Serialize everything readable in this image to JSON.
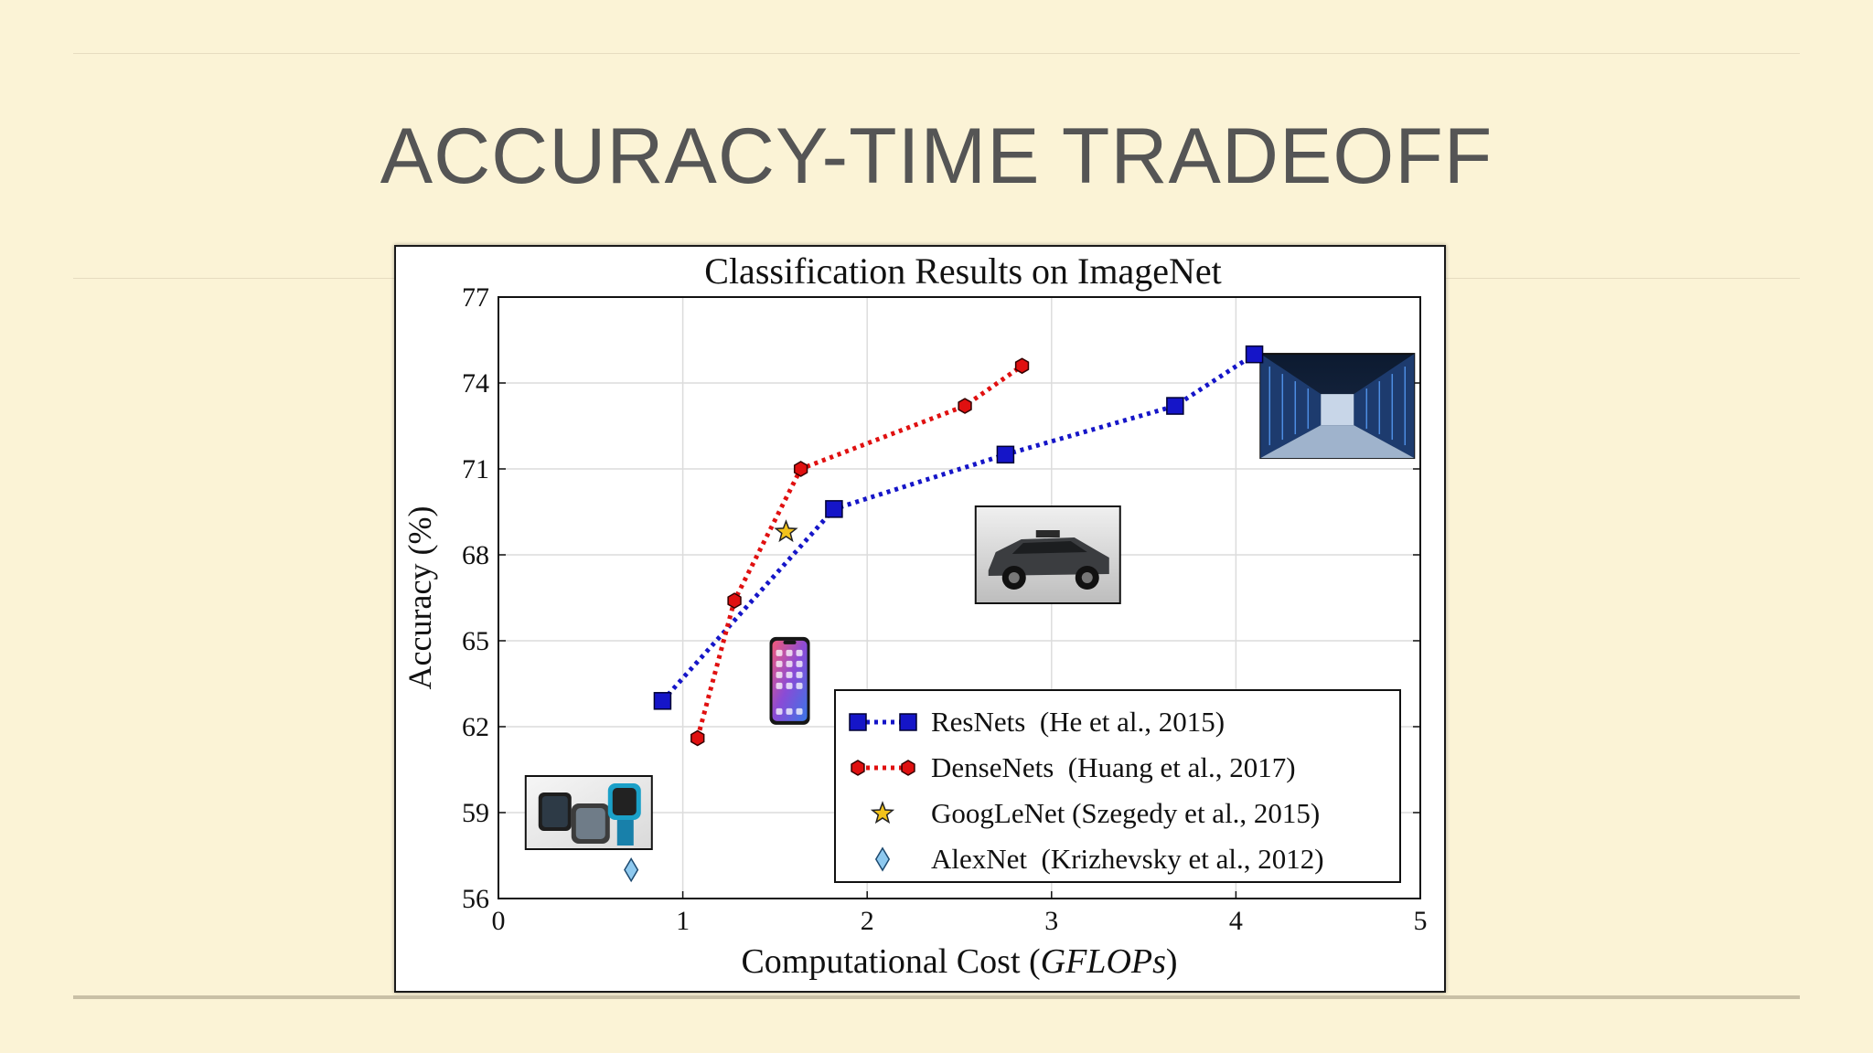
{
  "slide": {
    "title": "ACCURACY-TIME TRADEOFF"
  },
  "chart_data": {
    "type": "line",
    "title": "Classification Results on ImageNet",
    "xlabel_prefix": "Computational Cost (",
    "xlabel_italic": "GFLOPs",
    "xlabel_suffix": ")",
    "ylabel": "Accuracy (%)",
    "xlim": [
      0,
      5
    ],
    "ylim": [
      56,
      77
    ],
    "xticks": [
      0,
      1,
      2,
      3,
      4,
      5
    ],
    "yticks": [
      56,
      59,
      62,
      65,
      68,
      71,
      74,
      77
    ],
    "grid": true,
    "legend_position": "bottom-right",
    "series": [
      {
        "name": "ResNets  (He et al., 2015)",
        "marker": "square",
        "line": "dotted",
        "color": "#1515c8",
        "x": [
          0.89,
          1.82,
          2.75,
          3.67,
          4.1
        ],
        "y": [
          62.9,
          69.6,
          71.5,
          73.2,
          75.0
        ]
      },
      {
        "name": "DenseNets  (Huang et al., 2017)",
        "marker": "hexagon",
        "line": "dotted",
        "color": "#e01010",
        "x": [
          1.08,
          1.28,
          1.64,
          2.53,
          2.84
        ],
        "y": [
          61.6,
          66.4,
          71.0,
          73.2,
          74.6
        ]
      },
      {
        "name": "GoogLeNet (Szegedy et al., 2015)",
        "marker": "star",
        "line": "none",
        "color": "#f2c21b",
        "x": [
          1.56
        ],
        "y": [
          68.8
        ]
      },
      {
        "name": "AlexNet  (Krizhevsky et al., 2012)",
        "marker": "diamond",
        "line": "none",
        "color": "#8ec9ef",
        "x": [
          0.72
        ],
        "y": [
          57.0
        ]
      }
    ],
    "annotations": [
      {
        "name": "smartwatch-photo",
        "x": 0.49,
        "y": 59.0
      },
      {
        "name": "smartphone-photo",
        "x": 1.58,
        "y": 63.6
      },
      {
        "name": "self-driving-car-photo",
        "x": 2.98,
        "y": 68.0
      },
      {
        "name": "datacenter-photo",
        "x": 4.55,
        "y": 73.2
      }
    ]
  }
}
